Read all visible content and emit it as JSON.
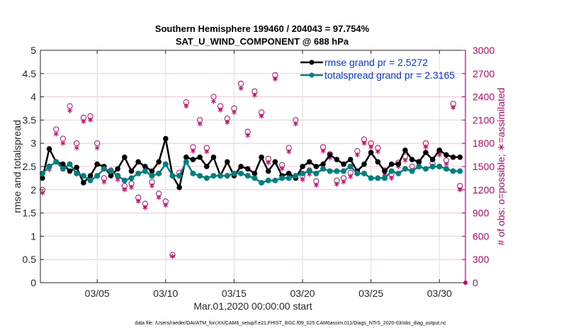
{
  "chart_data": {
    "type": "line",
    "title": "Southern Hemisphere 199460 / 204043 = 97.754%",
    "subtitle": "SAT_U_WIND_COMPONENT @ 688 hPa",
    "xlabel": "Mar.01,2020 00:00:00 start",
    "ylabel": "rmse and totalspread",
    "ylabel_right": "# of obs: o=possible; ∗=assimilated",
    "footer": "data file: /Users/raeder/DAI/ATM_forcXX/CAM6_setup/f.e21.FHIST_BGC.f09_025.CAM6assim.011/Diags_NTrS_2020-03/obs_diag_output.nc",
    "x_unit": "days since Mar.01,2020",
    "xlim": [
      -0.15,
      30.9
    ],
    "ylim": [
      0,
      5
    ],
    "ylim_right": [
      0,
      3000
    ],
    "xticks": [
      {
        "v": 4,
        "label": "03/05"
      },
      {
        "v": 9,
        "label": "03/10"
      },
      {
        "v": 14,
        "label": "03/15"
      },
      {
        "v": 19,
        "label": "03/20"
      },
      {
        "v": 24,
        "label": "03/25"
      },
      {
        "v": 29,
        "label": "03/30"
      }
    ],
    "yticks": [
      "0",
      "0.5",
      "1",
      "1.5",
      "2",
      "2.5",
      "3",
      "3.5",
      "4",
      "4.5",
      "5"
    ],
    "yticks_right": [
      "0",
      "300",
      "600",
      "900",
      "1200",
      "1500",
      "1800",
      "2100",
      "2400",
      "2700",
      "3000"
    ],
    "grid": true,
    "legend_position": "top-right",
    "x": [
      0,
      0.5,
      1,
      1.5,
      2,
      2.5,
      3,
      3.5,
      4,
      4.5,
      5,
      5.5,
      6,
      6.5,
      7,
      7.5,
      8,
      8.5,
      9,
      9.5,
      10,
      10.5,
      11,
      11.5,
      12,
      12.5,
      13,
      13.5,
      14,
      14.5,
      15,
      15.5,
      16,
      16.5,
      17,
      17.5,
      18,
      18.5,
      19,
      19.5,
      20,
      20.5,
      21,
      21.5,
      22,
      22.5,
      23,
      23.5,
      24,
      24.5,
      25,
      25.5,
      26,
      26.5,
      27,
      27.5,
      28,
      28.5,
      29,
      29.5,
      30,
      30.5
    ],
    "series": [
      {
        "name": "rmse grand pr = 2.5272",
        "color": "#000000",
        "axis": "left",
        "values": [
          2.25,
          2.88,
          2.6,
          2.55,
          2.4,
          2.48,
          2.15,
          2.3,
          2.55,
          2.5,
          2.3,
          2.45,
          2.7,
          2.4,
          2.6,
          2.5,
          2.4,
          2.6,
          3.1,
          2.3,
          2.05,
          2.7,
          2.65,
          2.7,
          2.5,
          2.7,
          2.3,
          2.6,
          2.3,
          2.5,
          2.45,
          2.35,
          2.7,
          2.4,
          2.6,
          2.3,
          2.35,
          2.25,
          2.5,
          2.6,
          2.5,
          2.55,
          2.75,
          2.65,
          2.55,
          2.65,
          2.4,
          2.55,
          2.8,
          2.6,
          2.4,
          2.55,
          2.55,
          2.85,
          2.65,
          2.6,
          2.8,
          2.65,
          2.85,
          2.75,
          2.7,
          2.7
        ]
      },
      {
        "name": "totalspread grand pr = 2.3165",
        "color": "#00807f",
        "axis": "left",
        "values": [
          2.35,
          2.5,
          2.6,
          2.45,
          2.55,
          2.35,
          2.3,
          2.2,
          2.3,
          2.45,
          2.4,
          2.3,
          2.2,
          2.25,
          2.35,
          2.4,
          2.3,
          2.35,
          2.55,
          2.3,
          2.3,
          2.6,
          2.35,
          2.3,
          2.25,
          2.3,
          2.3,
          2.3,
          2.35,
          2.35,
          2.3,
          2.25,
          2.15,
          2.2,
          2.2,
          2.25,
          2.25,
          2.3,
          2.35,
          2.4,
          2.35,
          2.45,
          2.4,
          2.4,
          2.4,
          2.5,
          2.35,
          2.35,
          2.25,
          2.25,
          2.25,
          2.4,
          2.35,
          2.45,
          2.4,
          2.5,
          2.45,
          2.5,
          2.5,
          2.45,
          2.4,
          2.4
        ]
      },
      {
        "name": "possible",
        "color": "#cc0066",
        "axis": "right",
        "marker": "o",
        "values": [
          1200,
          1500,
          1980,
          1860,
          2280,
          1800,
          2130,
          2150,
          1800,
          1350,
          1450,
          1380,
          1250,
          1280,
          1100,
          1020,
          1300,
          1150,
          1050,
          360,
          1420,
          2330,
          1750,
          2100,
          1740,
          2400,
          2280,
          2120,
          2250,
          2570,
          1950,
          2470,
          2200,
          1600,
          2680,
          1520,
          1740,
          2100,
          1380,
          1450,
          1310,
          1750,
          1660,
          1320,
          1350,
          1420,
          1700,
          1850,
          1800,
          1740,
          1450,
          1400,
          1550,
          1630,
          1500,
          1560,
          1800,
          1540,
          1700,
          1580,
          2310,
          1250
        ]
      },
      {
        "name": "assimilated",
        "color": "#cc0066",
        "axis": "right",
        "marker": "*",
        "values": [
          1160,
          1460,
          1920,
          1800,
          2220,
          1740,
          2080,
          2100,
          1740,
          1300,
          1400,
          1330,
          1200,
          1230,
          1050,
          970,
          1250,
          1100,
          1000,
          340,
          1380,
          2280,
          1700,
          2050,
          1690,
          2340,
          2230,
          2070,
          2200,
          2510,
          1900,
          2420,
          2150,
          1550,
          2630,
          1470,
          1690,
          2050,
          1330,
          1400,
          1260,
          1700,
          1610,
          1270,
          1300,
          1370,
          1650,
          1800,
          1750,
          1690,
          1400,
          1350,
          1500,
          1580,
          1450,
          1510,
          1750,
          1490,
          1650,
          1530,
          2260,
          1200
        ]
      }
    ]
  }
}
